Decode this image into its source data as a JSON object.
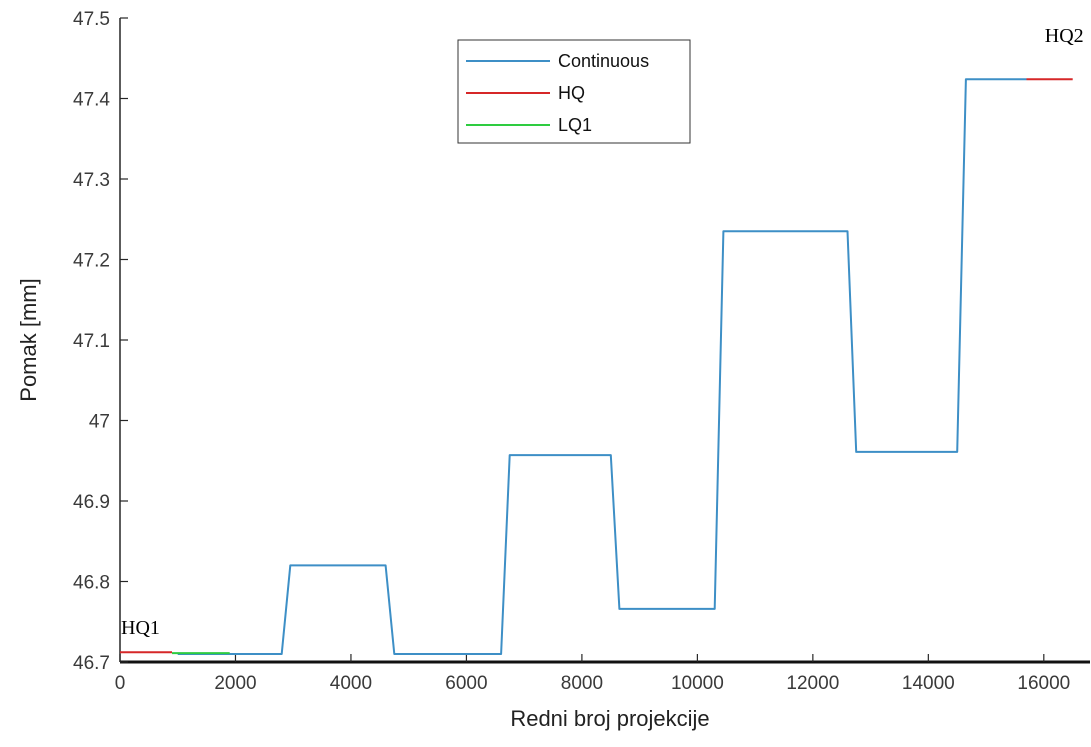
{
  "chart_data": {
    "type": "line",
    "xlabel": "Redni broj projekcije",
    "ylabel": "Pomak [mm]",
    "xlim": [
      0,
      16800
    ],
    "ylim": [
      46.7,
      47.5
    ],
    "xticks": [
      0,
      2000,
      4000,
      6000,
      8000,
      10000,
      12000,
      14000,
      16000
    ],
    "xtick_labels": [
      "0",
      "2000",
      "4000",
      "6000",
      "8000",
      "10000",
      "12000",
      "14000",
      "16000"
    ],
    "yticks": [
      46.7,
      46.8,
      46.9,
      47.0,
      47.1,
      47.2,
      47.3,
      47.4,
      47.5
    ],
    "ytick_labels": [
      "46.7",
      "46.8",
      "46.9",
      "47",
      "47.1",
      "47.2",
      "47.3",
      "47.4",
      "47.5"
    ],
    "grid": false,
    "legend_position": "top-center",
    "series": [
      {
        "name": "Continuous",
        "color": "#3d8fc6",
        "x": [
          1000,
          2800,
          2950,
          4600,
          4750,
          6600,
          6750,
          8500,
          8650,
          10300,
          10450,
          12600,
          12750,
          14500,
          14650,
          15700
        ],
        "y": [
          46.71,
          46.71,
          46.82,
          46.82,
          46.71,
          46.71,
          46.957,
          46.957,
          46.766,
          46.766,
          47.235,
          47.235,
          46.961,
          46.961,
          47.424,
          47.424
        ]
      },
      {
        "name": "HQ",
        "color": "#d62728",
        "x": [
          0,
          900
        ],
        "y": [
          46.712,
          46.712
        ],
        "extra_segments": [
          {
            "x": [
              15700,
              16500
            ],
            "y": [
              47.424,
              47.424
            ]
          }
        ]
      },
      {
        "name": "LQ1",
        "color": "#2ecc40",
        "x": [
          900,
          1900
        ],
        "y": [
          46.711,
          46.711
        ]
      }
    ],
    "annotations": [
      {
        "text": "HQ1",
        "x": 0,
        "y": 46.725
      },
      {
        "text": "HQ2",
        "x": 16000,
        "y": 47.46
      }
    ]
  }
}
